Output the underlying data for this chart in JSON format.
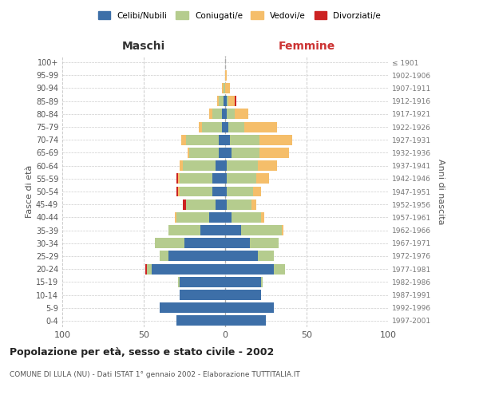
{
  "age_groups": [
    "0-4",
    "5-9",
    "10-14",
    "15-19",
    "20-24",
    "25-29",
    "30-34",
    "35-39",
    "40-44",
    "45-49",
    "50-54",
    "55-59",
    "60-64",
    "65-69",
    "70-74",
    "75-79",
    "80-84",
    "85-89",
    "90-94",
    "95-99",
    "100+"
  ],
  "birth_years": [
    "1997-2001",
    "1992-1996",
    "1987-1991",
    "1982-1986",
    "1977-1981",
    "1972-1976",
    "1967-1971",
    "1962-1966",
    "1957-1961",
    "1952-1956",
    "1947-1951",
    "1942-1946",
    "1937-1941",
    "1932-1936",
    "1927-1931",
    "1922-1926",
    "1917-1921",
    "1912-1916",
    "1907-1911",
    "1902-1906",
    "≤ 1901"
  ],
  "maschi": {
    "celibi": [
      30,
      40,
      28,
      28,
      45,
      35,
      25,
      15,
      10,
      6,
      8,
      8,
      6,
      4,
      4,
      2,
      2,
      1,
      0,
      0,
      0
    ],
    "coniugati": [
      0,
      0,
      0,
      1,
      3,
      5,
      18,
      20,
      20,
      18,
      20,
      20,
      20,
      18,
      20,
      12,
      6,
      3,
      1,
      0,
      0
    ],
    "vedovi": [
      0,
      0,
      0,
      0,
      0,
      0,
      0,
      0,
      1,
      0,
      1,
      1,
      2,
      1,
      3,
      2,
      2,
      1,
      1,
      0,
      0
    ],
    "divorziati": [
      0,
      0,
      0,
      0,
      1,
      0,
      0,
      0,
      0,
      2,
      1,
      1,
      0,
      0,
      0,
      0,
      0,
      0,
      0,
      0,
      0
    ]
  },
  "femmine": {
    "nubili": [
      25,
      30,
      22,
      22,
      30,
      20,
      15,
      10,
      4,
      1,
      1,
      1,
      1,
      4,
      3,
      2,
      1,
      1,
      0,
      0,
      0
    ],
    "coniugate": [
      0,
      0,
      0,
      1,
      7,
      10,
      18,
      25,
      18,
      15,
      16,
      18,
      19,
      17,
      18,
      10,
      5,
      1,
      0,
      0,
      0
    ],
    "vedove": [
      0,
      0,
      0,
      0,
      0,
      0,
      0,
      1,
      2,
      3,
      5,
      8,
      12,
      18,
      20,
      20,
      8,
      4,
      3,
      1,
      0
    ],
    "divorziate": [
      0,
      0,
      0,
      0,
      0,
      0,
      0,
      0,
      0,
      0,
      0,
      0,
      0,
      0,
      0,
      0,
      0,
      1,
      0,
      0,
      0
    ]
  },
  "colors": {
    "celibi_nubili": "#3d6fa8",
    "coniugati": "#b5cc8e",
    "vedovi": "#f5be6a",
    "divorziati": "#cc2222"
  },
  "xlim": 100,
  "title": "Popolazione per età, sesso e stato civile - 2002",
  "subtitle": "COMUNE DI LULA (NU) - Dati ISTAT 1° gennaio 2002 - Elaborazione TUTTITALIA.IT",
  "ylabel": "Fasce di età",
  "ylabel_right": "Anni di nascita",
  "xlabel_left": "Maschi",
  "xlabel_right": "Femmine",
  "background_color": "#ffffff",
  "grid_color": "#cccccc"
}
